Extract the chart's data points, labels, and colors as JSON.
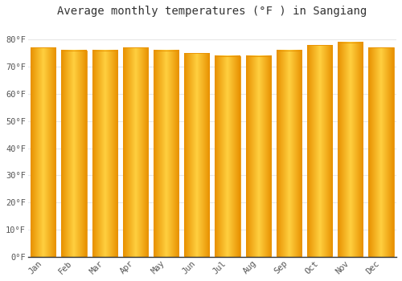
{
  "title": "Average monthly temperatures (°F ) in Sangiang",
  "months": [
    "Jan",
    "Feb",
    "Mar",
    "Apr",
    "May",
    "Jun",
    "Jul",
    "Aug",
    "Sep",
    "Oct",
    "Nov",
    "Dec"
  ],
  "values": [
    77,
    76,
    76,
    77,
    76,
    75,
    74,
    74,
    76,
    78,
    79,
    77
  ],
  "background_color": "#FFFFFF",
  "yticks": [
    0,
    10,
    20,
    30,
    40,
    50,
    60,
    70,
    80
  ],
  "ylim": [
    0,
    86
  ],
  "ylabel_suffix": "°F",
  "grid_color": "#E8E8E8",
  "title_fontsize": 10,
  "tick_fontsize": 7.5,
  "bar_color_center": "#FFD040",
  "bar_color_edge": "#E89000",
  "bar_width": 0.82
}
